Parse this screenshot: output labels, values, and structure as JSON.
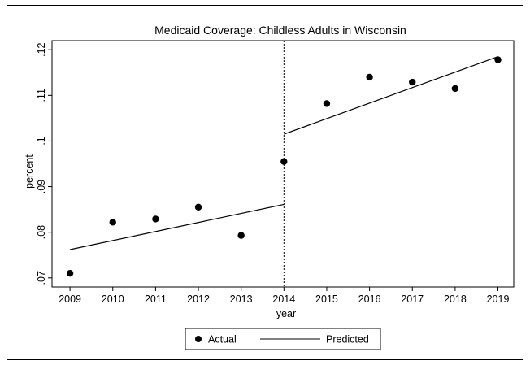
{
  "chart_data": {
    "type": "scatter",
    "title": "Medicaid Coverage: Childless Adults in Wisconsin",
    "xlabel": "year",
    "ylabel": "percent",
    "xlim": [
      2009,
      2019
    ],
    "ylim": [
      0.07,
      0.12
    ],
    "xticks": [
      2009,
      2010,
      2011,
      2012,
      2013,
      2014,
      2015,
      2016,
      2017,
      2018,
      2019
    ],
    "yticks": [
      ".07",
      ".08",
      ".09",
      ".1",
      ".11",
      ".12"
    ],
    "yticks_values": [
      0.07,
      0.08,
      0.09,
      0.1,
      0.11,
      0.12
    ],
    "series": [
      {
        "name": "Actual",
        "kind": "scatter",
        "x": [
          2009,
          2010,
          2011,
          2012,
          2013,
          2014,
          2015,
          2016,
          2017,
          2018,
          2019
        ],
        "y": [
          0.071,
          0.0822,
          0.0829,
          0.0855,
          0.0793,
          0.0955,
          0.1082,
          0.114,
          0.1129,
          0.1115,
          0.1178
        ]
      },
      {
        "name": "Predicted",
        "kind": "line",
        "segments": [
          {
            "x": [
              2009,
              2014
            ],
            "y": [
              0.0762,
              0.0861
            ]
          },
          {
            "x": [
              2014,
              2019
            ],
            "y": [
              0.1015,
              0.1185
            ]
          }
        ]
      }
    ],
    "reference_line": {
      "axis": "x",
      "value": 2014,
      "style": "dashed"
    },
    "grid": false,
    "legend": {
      "position": "bottom"
    }
  }
}
